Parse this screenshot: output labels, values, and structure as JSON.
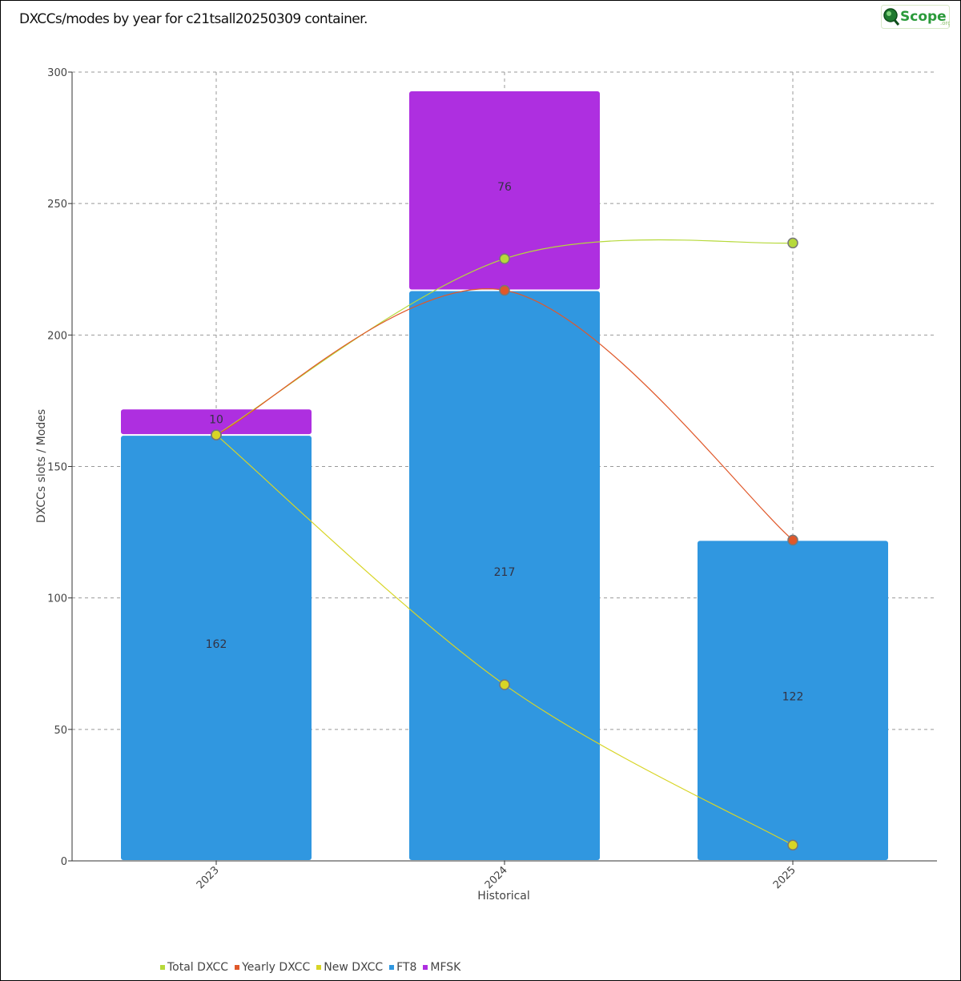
{
  "title": "DXCCs/modes by year for c21tsall20250309 container.",
  "logo": {
    "name": "Scope",
    "suffix": ".org"
  },
  "chart_data": {
    "type": "bar",
    "stacked": true,
    "categories": [
      "2023",
      "2024",
      "2025"
    ],
    "xlabel": "Historical",
    "ylabel": "DXCCs slots / Modes",
    "ylim": [
      0,
      300
    ],
    "yticks": [
      0,
      50,
      100,
      150,
      200,
      250,
      300
    ],
    "grid": true,
    "legend_position": "bottom-left",
    "bar_series": [
      {
        "name": "FT8",
        "color": "#3097e0",
        "values": [
          162,
          217,
          122
        ],
        "labels": [
          "162",
          "217",
          "122"
        ]
      },
      {
        "name": "MFSK",
        "color": "#ae2fe0",
        "values": [
          10,
          76,
          0
        ],
        "labels": [
          "10",
          "76",
          ""
        ]
      }
    ],
    "line_series": [
      {
        "name": "Total DXCC",
        "color": "#b6d93a",
        "values": [
          162,
          229,
          235
        ]
      },
      {
        "name": "Yearly DXCC",
        "color": "#e0582a",
        "values": [
          162,
          217,
          122
        ]
      },
      {
        "name": "New DXCC",
        "color": "#d8d526",
        "values": [
          162,
          67,
          6
        ]
      }
    ],
    "legend": [
      "Total DXCC",
      "Yearly DXCC",
      "New DXCC",
      "FT8",
      "MFSK"
    ]
  }
}
